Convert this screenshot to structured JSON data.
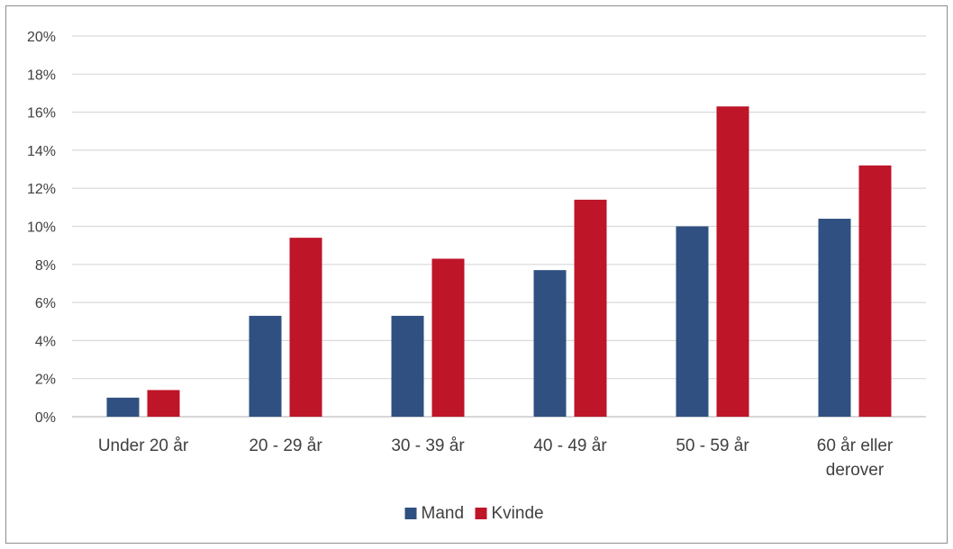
{
  "chart_data": {
    "type": "bar",
    "categories": [
      "Under 20 år",
      "20 - 29 år",
      "30 - 39 år",
      "40 - 49 år",
      "50 - 59 år",
      "60 år eller derover"
    ],
    "series": [
      {
        "name": "Mand",
        "color": "#2f5081",
        "values": [
          1.0,
          5.3,
          5.3,
          7.7,
          10.0,
          10.4
        ]
      },
      {
        "name": "Kvinde",
        "color": "#be1529",
        "values": [
          1.4,
          9.4,
          8.3,
          11.4,
          16.3,
          13.2
        ]
      }
    ],
    "ylim": [
      0,
      20
    ],
    "yticks": [
      "0%",
      "2%",
      "4%",
      "6%",
      "8%",
      "10%",
      "12%",
      "14%",
      "16%",
      "18%",
      "20%"
    ],
    "grid": true,
    "legend_position": "bottom",
    "gridline_color": "#d9d9d9",
    "axis_color": "#bfbfbf"
  }
}
